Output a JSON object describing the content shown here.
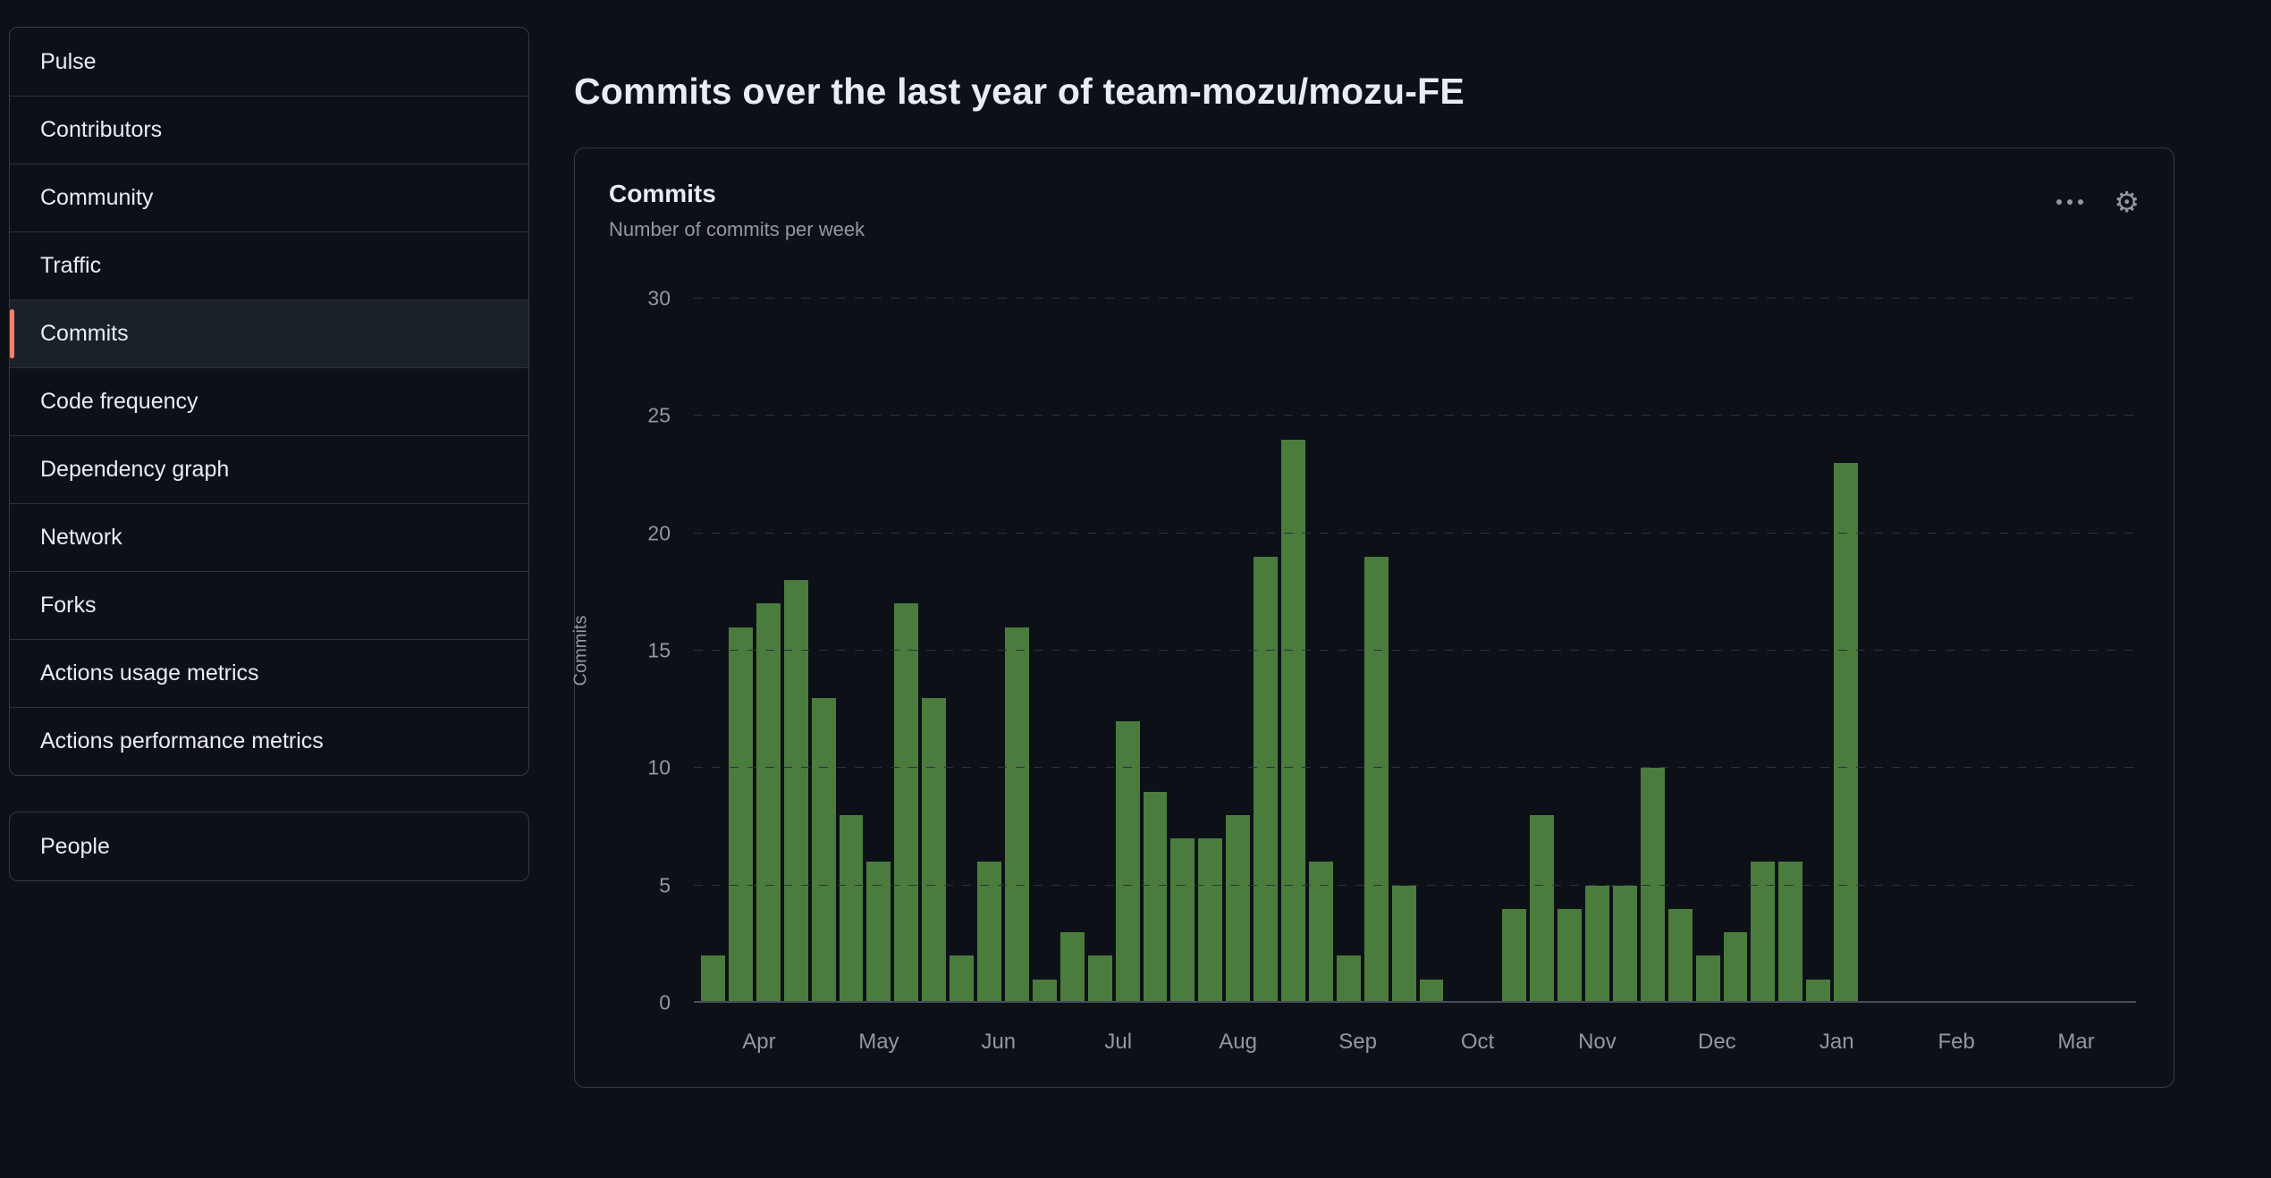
{
  "colors": {
    "background": "#0d1117",
    "accent": "#f78166",
    "bar_green": "#4a7c3e",
    "text": "#e6edf3",
    "muted_text": "#9198a1"
  },
  "header": {
    "title_prefix": "Commits over the last year of ",
    "repo": "team-mozu/mozu-FE"
  },
  "sidebar": {
    "items": [
      {
        "label": "Pulse",
        "selected": false
      },
      {
        "label": "Contributors",
        "selected": false
      },
      {
        "label": "Community",
        "selected": false
      },
      {
        "label": "Traffic",
        "selected": false
      },
      {
        "label": "Commits",
        "selected": true
      },
      {
        "label": "Code frequency",
        "selected": false
      },
      {
        "label": "Dependency graph",
        "selected": false
      },
      {
        "label": "Network",
        "selected": false
      },
      {
        "label": "Forks",
        "selected": false
      },
      {
        "label": "Actions usage metrics",
        "selected": false
      },
      {
        "label": "Actions performance metrics",
        "selected": false
      }
    ],
    "secondary_items": [
      {
        "label": "People",
        "selected": false
      }
    ]
  },
  "card": {
    "title": "Commits",
    "subtitle": "Number of commits per week",
    "icons": [
      "kebab-horizontal-icon",
      "gear-icon"
    ]
  },
  "chart_data": {
    "type": "bar",
    "title": "Commits",
    "subtitle": "Number of commits per week",
    "ylabel": "Commits",
    "ylim": [
      0,
      30
    ],
    "yticks": [
      0,
      5,
      10,
      15,
      20,
      25,
      30
    ],
    "grid": "dashed horizontal",
    "month_labels": [
      "Apr",
      "May",
      "Jun",
      "Jul",
      "Aug",
      "Sep",
      "Oct",
      "Nov",
      "Dec",
      "Jan",
      "Feb",
      "Mar"
    ],
    "x_unit": "week",
    "values": [
      2,
      16,
      17,
      18,
      13,
      8,
      6,
      17,
      13,
      2,
      6,
      16,
      1,
      3,
      2,
      12,
      9,
      7,
      7,
      8,
      19,
      24,
      6,
      2,
      19,
      5,
      1,
      0,
      0,
      4,
      8,
      4,
      5,
      5,
      10,
      4,
      2,
      3,
      6,
      6,
      1,
      23,
      0,
      0,
      0,
      0,
      0,
      0,
      0,
      0,
      0,
      0
    ],
    "bar_color": "#4a7c3e"
  }
}
